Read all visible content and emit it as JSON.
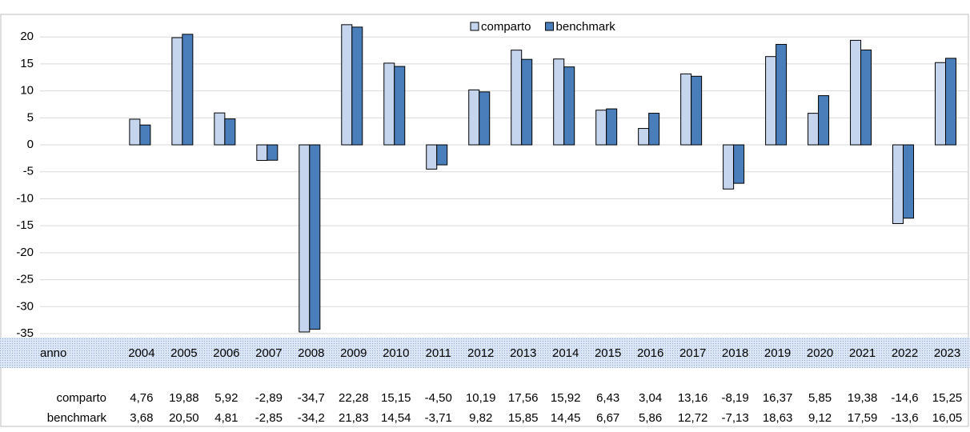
{
  "chart_data": {
    "type": "bar",
    "table_header": "anno",
    "categories": [
      "2004",
      "2005",
      "2006",
      "2007",
      "2008",
      "2009",
      "2010",
      "2011",
      "2012",
      "2013",
      "2014",
      "2015",
      "2016",
      "2017",
      "2018",
      "2019",
      "2020",
      "2021",
      "2022",
      "2023"
    ],
    "series": [
      {
        "name": "comparto",
        "color": "#c6d5ee",
        "values": [
          4.76,
          19.88,
          5.92,
          -2.89,
          -34.7,
          22.28,
          15.15,
          -4.5,
          10.19,
          17.56,
          15.92,
          6.43,
          3.04,
          13.16,
          -8.19,
          16.37,
          5.85,
          19.38,
          -14.6,
          15.25
        ],
        "value_labels": [
          "4,76",
          "19,88",
          "5,92",
          "-2,89",
          "-34,7",
          "22,28",
          "15,15",
          "-4,50",
          "10,19",
          "17,56",
          "15,92",
          "6,43",
          "3,04",
          "13,16",
          "-8,19",
          "16,37",
          "5,85",
          "19,38",
          "-14,6",
          "15,25"
        ]
      },
      {
        "name": "benchmark",
        "color": "#4a7ebb",
        "values": [
          3.68,
          20.5,
          4.81,
          -2.85,
          -34.2,
          21.83,
          14.54,
          -3.71,
          9.82,
          15.85,
          14.45,
          6.67,
          5.86,
          12.72,
          -7.13,
          18.63,
          9.12,
          17.59,
          -13.6,
          16.05
        ],
        "value_labels": [
          "3,68",
          "20,50",
          "4,81",
          "-2,85",
          "-34,2",
          "21,83",
          "14,54",
          "-3,71",
          "9,82",
          "15,85",
          "14,45",
          "6,67",
          "5,86",
          "12,72",
          "-7,13",
          "18,63",
          "9,12",
          "17,59",
          "-13,6",
          "16,05"
        ]
      }
    ],
    "ylim": [
      -35,
      23
    ],
    "yticks": [
      -35,
      -30,
      -25,
      -20,
      -15,
      -10,
      -5,
      0,
      5,
      10,
      15,
      20
    ],
    "grid": true
  }
}
